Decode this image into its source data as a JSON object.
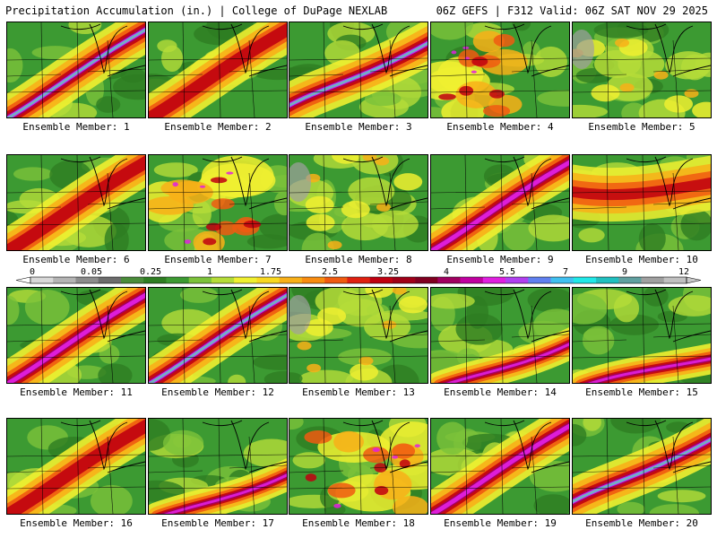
{
  "header": {
    "title": "Precipitation Accumulation (in.) | College of DuPage NEXLAB",
    "run_info": "06Z GEFS | F312 Valid: 06Z SAT NOV 29 2025"
  },
  "colors": {
    "background_green": "#3c9a32",
    "scale": [
      "#d8d8d8",
      "#b4b4b4",
      "#8c8c8c",
      "#6c6c6c",
      "#4a8c3a",
      "#2e7d22",
      "#3c9a32",
      "#7cc23a",
      "#b5dc38",
      "#f0f030",
      "#f8d820",
      "#f8b018",
      "#f88c10",
      "#f05a10",
      "#e02010",
      "#c00010",
      "#a00018",
      "#800020",
      "#a00060",
      "#c000a0",
      "#e020e0",
      "#b040f0",
      "#6080f0",
      "#40c0f0",
      "#20e8e8",
      "#20c0c0",
      "#60a0a0",
      "#a0a0a0",
      "#c0c0c0"
    ]
  },
  "colorbar": {
    "labels": [
      "0",
      "0.05",
      "0.25",
      "1",
      "1.75",
      "2.5",
      "3.25",
      "4",
      "5.5",
      "7",
      "9",
      "12"
    ]
  },
  "panels": [
    {
      "label": "Ensemble Member: 1",
      "pattern": "diag-intense"
    },
    {
      "label": "Ensemble Member: 2",
      "pattern": "diag-mid"
    },
    {
      "label": "Ensemble Member: 3",
      "pattern": "diag-intense-high"
    },
    {
      "label": "Ensemble Member: 4",
      "pattern": "west-heavy"
    },
    {
      "label": "Ensemble Member: 5",
      "pattern": "light"
    },
    {
      "label": "Ensemble Member: 6",
      "pattern": "diag-mid"
    },
    {
      "label": "Ensemble Member: 7",
      "pattern": "scattered"
    },
    {
      "label": "Ensemble Member: 8",
      "pattern": "light"
    },
    {
      "label": "Ensemble Member: 9",
      "pattern": "diag-strong"
    },
    {
      "label": "Ensemble Member: 10",
      "pattern": "broad"
    },
    {
      "label": "Ensemble Member: 11",
      "pattern": "diag-strong"
    },
    {
      "label": "Ensemble Member: 12",
      "pattern": "diag-intense"
    },
    {
      "label": "Ensemble Member: 13",
      "pattern": "light"
    },
    {
      "label": "Ensemble Member: 14",
      "pattern": "south-heavy"
    },
    {
      "label": "Ensemble Member: 15",
      "pattern": "south-band"
    },
    {
      "label": "Ensemble Member: 16",
      "pattern": "diag-mid"
    },
    {
      "label": "Ensemble Member: 17",
      "pattern": "south-heavy"
    },
    {
      "label": "Ensemble Member: 18",
      "pattern": "scattered"
    },
    {
      "label": "Ensemble Member: 19",
      "pattern": "diag-strong"
    },
    {
      "label": "Ensemble Member: 20",
      "pattern": "diag-intense-high"
    }
  ]
}
